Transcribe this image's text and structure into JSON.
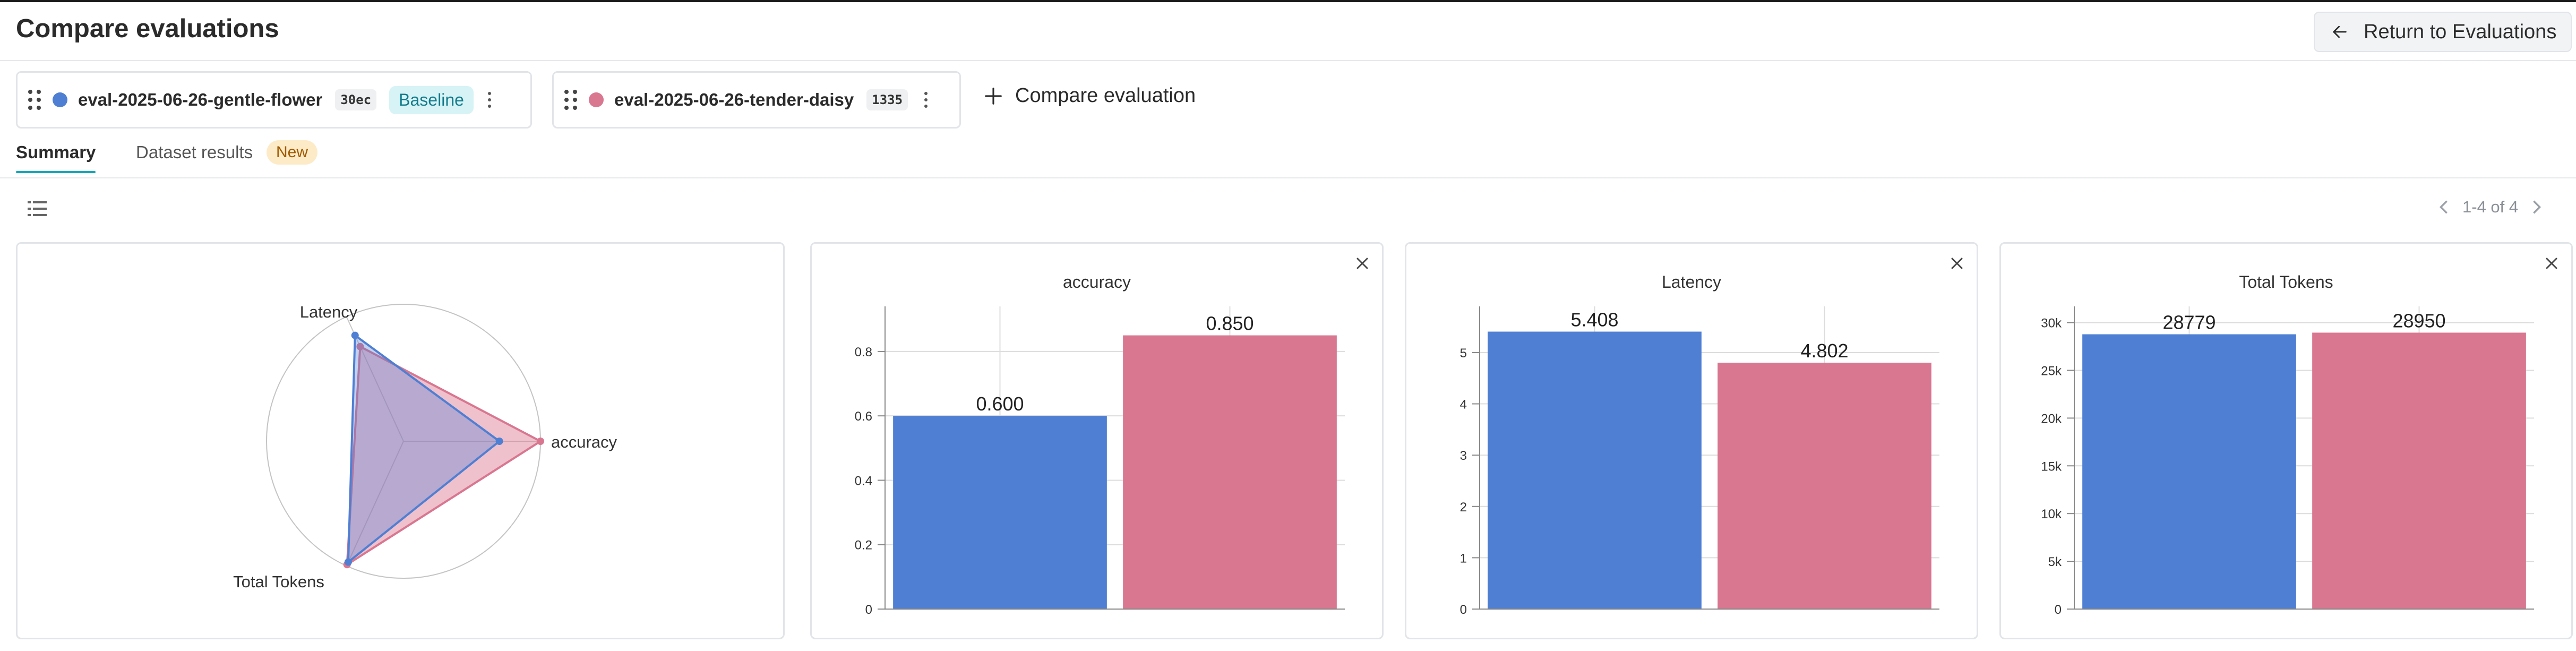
{
  "header": {
    "title": "Compare evaluations",
    "return_label": "Return to Evaluations"
  },
  "evaluations": [
    {
      "name": "eval-2025-06-26-gentle-flower",
      "hash": "30ec",
      "badge": "Baseline",
      "color": "#4f7fd3"
    },
    {
      "name": "eval-2025-06-26-tender-daisy",
      "hash": "1335",
      "color": "#d97690"
    }
  ],
  "compare_label": "Compare evaluation",
  "tabs": {
    "summary": "Summary",
    "dataset_results": "Dataset results",
    "new_badge": "New"
  },
  "pager": {
    "text": "1-4 of 4"
  },
  "colors": {
    "series_a": "#4f7fd3",
    "series_b": "#d97690",
    "accent": "#13a9ba"
  },
  "chart_data": [
    {
      "type": "radar",
      "axes": [
        "Latency",
        "accuracy",
        "Total Tokens"
      ],
      "series": [
        {
          "values": [
            0.85,
            0.7,
            0.97
          ]
        },
        {
          "values": [
            0.76,
            1.0,
            0.99
          ]
        }
      ]
    },
    {
      "type": "bar",
      "title": "accuracy",
      "categories": [
        "eval-2025-06-26-gentle-flower",
        "eval-2025-06-26-tender-daisy"
      ],
      "values": [
        0.6,
        0.85
      ],
      "value_labels": [
        "0.600",
        "0.850"
      ],
      "ylim": [
        0,
        0.94
      ],
      "yticks": [
        0,
        0.2,
        0.4,
        0.6,
        0.8
      ],
      "ytick_labels": [
        "0",
        "0.2",
        "0.4",
        "0.6",
        "0.8"
      ],
      "grid": true
    },
    {
      "type": "bar",
      "title": "Latency",
      "categories": [
        "eval-2025-06-26-gentle-flower",
        "eval-2025-06-26-tender-daisy"
      ],
      "values": [
        5.408,
        4.802
      ],
      "value_labels": [
        "5.408",
        "4.802"
      ],
      "ylim": [
        0,
        5.9
      ],
      "yticks": [
        0,
        1,
        2,
        3,
        4,
        5
      ],
      "ytick_labels": [
        "0",
        "1",
        "2",
        "3",
        "4",
        "5"
      ],
      "grid": true
    },
    {
      "type": "bar",
      "title": "Total Tokens",
      "categories": [
        "eval-2025-06-26-gentle-flower",
        "eval-2025-06-26-tender-daisy"
      ],
      "values": [
        28779,
        28950
      ],
      "value_labels": [
        "28779",
        "28950"
      ],
      "ylim": [
        0,
        31700
      ],
      "yticks": [
        0,
        5000,
        10000,
        15000,
        20000,
        25000,
        30000
      ],
      "ytick_labels": [
        "0",
        "5k",
        "10k",
        "15k",
        "20k",
        "25k",
        "30k"
      ],
      "grid": true
    }
  ]
}
